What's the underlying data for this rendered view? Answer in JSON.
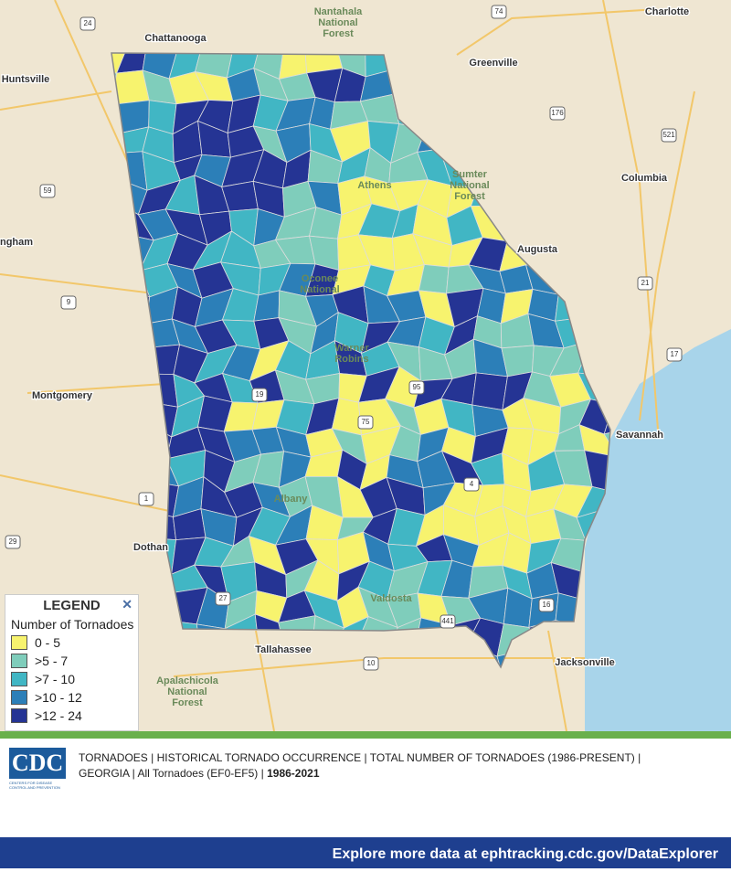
{
  "map": {
    "places": [
      "Charlotte",
      "Chattanooga",
      "Nantahala",
      "National",
      "Forest",
      "Huntsville",
      "Greenville",
      "Sumter",
      "National",
      "Forest",
      "Columbia",
      "Augusta",
      "Athens",
      "Oconee",
      "National",
      "Warner",
      "Robins",
      "Albany",
      "Valdosta",
      "Savannah",
      "Jacksonville",
      "Tallahassee",
      "Apalachicola",
      "National",
      "Forest",
      "Dothan",
      "Montgomery",
      "ngham"
    ],
    "shields": [
      "24",
      "74",
      "176",
      "521",
      "59",
      "9",
      "21",
      "17",
      "1",
      "29",
      "10",
      "27",
      "75",
      "16",
      "19",
      "441",
      "95",
      "4"
    ]
  },
  "legend": {
    "title": "LEGEND",
    "close": "✕",
    "subtitle": "Number of Tornadoes",
    "items": [
      {
        "label": "0 - 5",
        "color": "#f7f36e"
      },
      {
        "label": ">5 - 7",
        "color": "#7fcdbb"
      },
      {
        "label": ">7 - 10",
        "color": "#41b6c4"
      },
      {
        "label": ">10 - 12",
        "color": "#2c7fb8"
      },
      {
        "label": ">12 - 24",
        "color": "#253494"
      }
    ]
  },
  "footer": {
    "logo": "CDC",
    "logo_sub": "CENTERS FOR DISEASE CONTROL AND PREVENTION",
    "line1": "TORNADOES | HISTORICAL TORNADO OCCURRENCE | TOTAL NUMBER OF TORNADOES (1986-PRESENT) |",
    "line2": "GEORGIA | All Tornadoes (EF0-EF5) |",
    "years": "1986-2021",
    "explore": "Explore more data at ephtracking.cdc.gov/DataExplorer"
  }
}
